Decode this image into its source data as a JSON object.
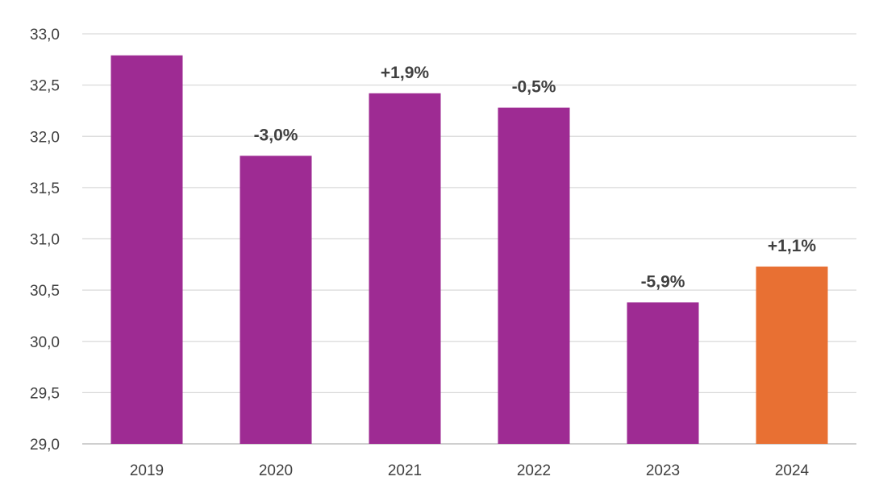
{
  "chart_data": {
    "type": "bar",
    "categories": [
      "2019",
      "2020",
      "2021",
      "2022",
      "2023",
      "2024"
    ],
    "values": [
      32.79,
      31.81,
      32.42,
      32.28,
      30.38,
      30.73
    ],
    "data_labels": [
      "",
      "-3,0%",
      "+1,9%",
      "-0,5%",
      "-5,9%",
      "+1,1%"
    ],
    "bar_colors": [
      "#9E2B93",
      "#9E2B93",
      "#9E2B93",
      "#9E2B93",
      "#9E2B93",
      "#E87033"
    ],
    "ylim": [
      29.0,
      33.0
    ],
    "y_ticks": [
      "29,0",
      "29,5",
      "30,0",
      "30,5",
      "31,0",
      "31,5",
      "32,0",
      "32,5",
      "33,0"
    ],
    "y_tick_values": [
      29.0,
      29.5,
      30.0,
      30.5,
      31.0,
      31.5,
      32.0,
      32.5,
      33.0
    ],
    "grid": true,
    "title": "",
    "xlabel": "",
    "ylabel": ""
  },
  "colors": {
    "primary": "#9E2B93",
    "highlight": "#E87033",
    "grid": "#D9D9D9",
    "text": "#404040"
  }
}
